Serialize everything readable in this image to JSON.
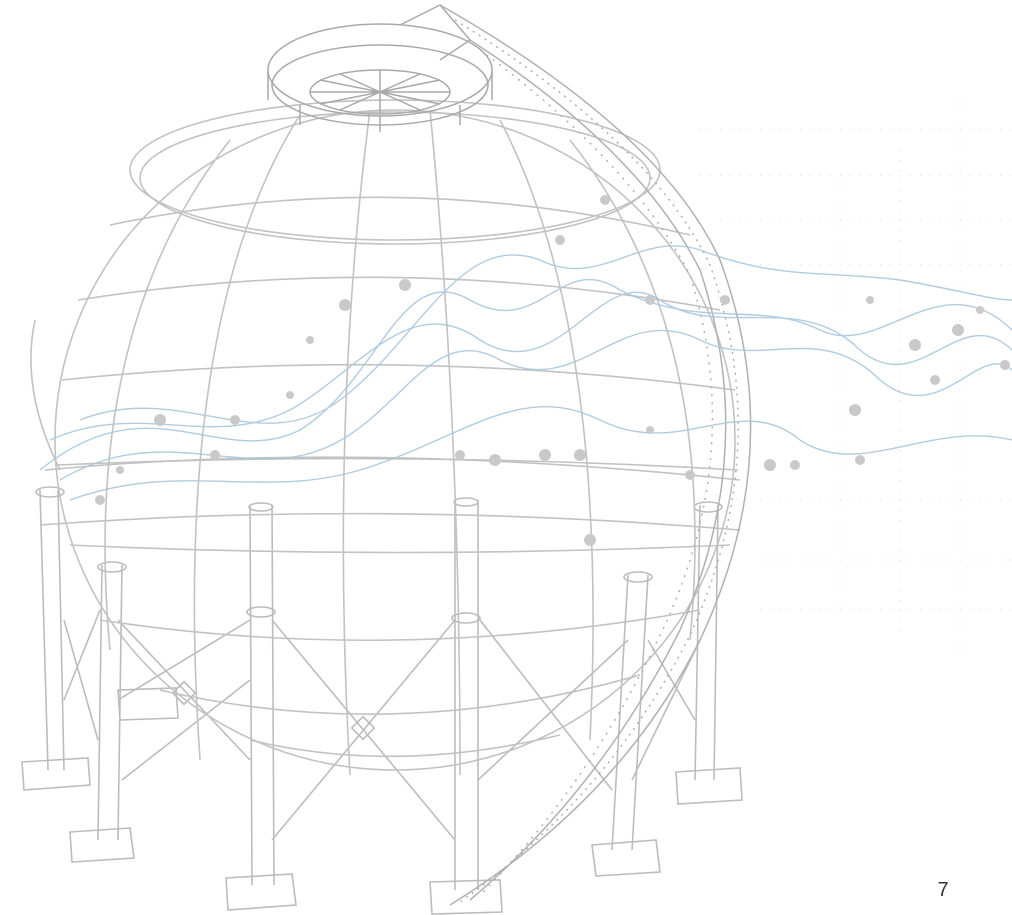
{
  "page": {
    "page_number": "7"
  },
  "illustration": {
    "subject": "spherical-storage-tank-icon",
    "overlay": "data-waves-icon",
    "colors": {
      "line_gray": "#bdbdbd",
      "line_dark": "#a9a9a9",
      "wave_blue": "#a9c7dd",
      "dot_gray": "#c9c9c9"
    }
  }
}
